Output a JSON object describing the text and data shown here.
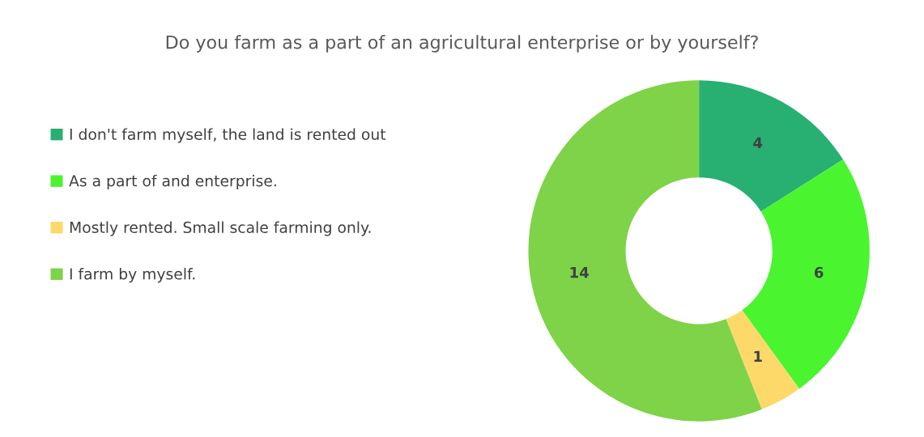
{
  "chart_data": {
    "type": "donut",
    "title": "Do you farm as a part of an agricultural enterprise or by yourself?",
    "categories": [
      "I don't farm myself, the land is rented out",
      "As a part of and enterprise.",
      "Mostly rented. Small scale farming only.",
      "I farm by myself."
    ],
    "values": [
      4,
      6,
      1,
      14
    ],
    "colors": [
      "#27b071",
      "#4af52f",
      "#fdd96a",
      "#7ed348"
    ],
    "data_labels": true,
    "legend": "left"
  }
}
